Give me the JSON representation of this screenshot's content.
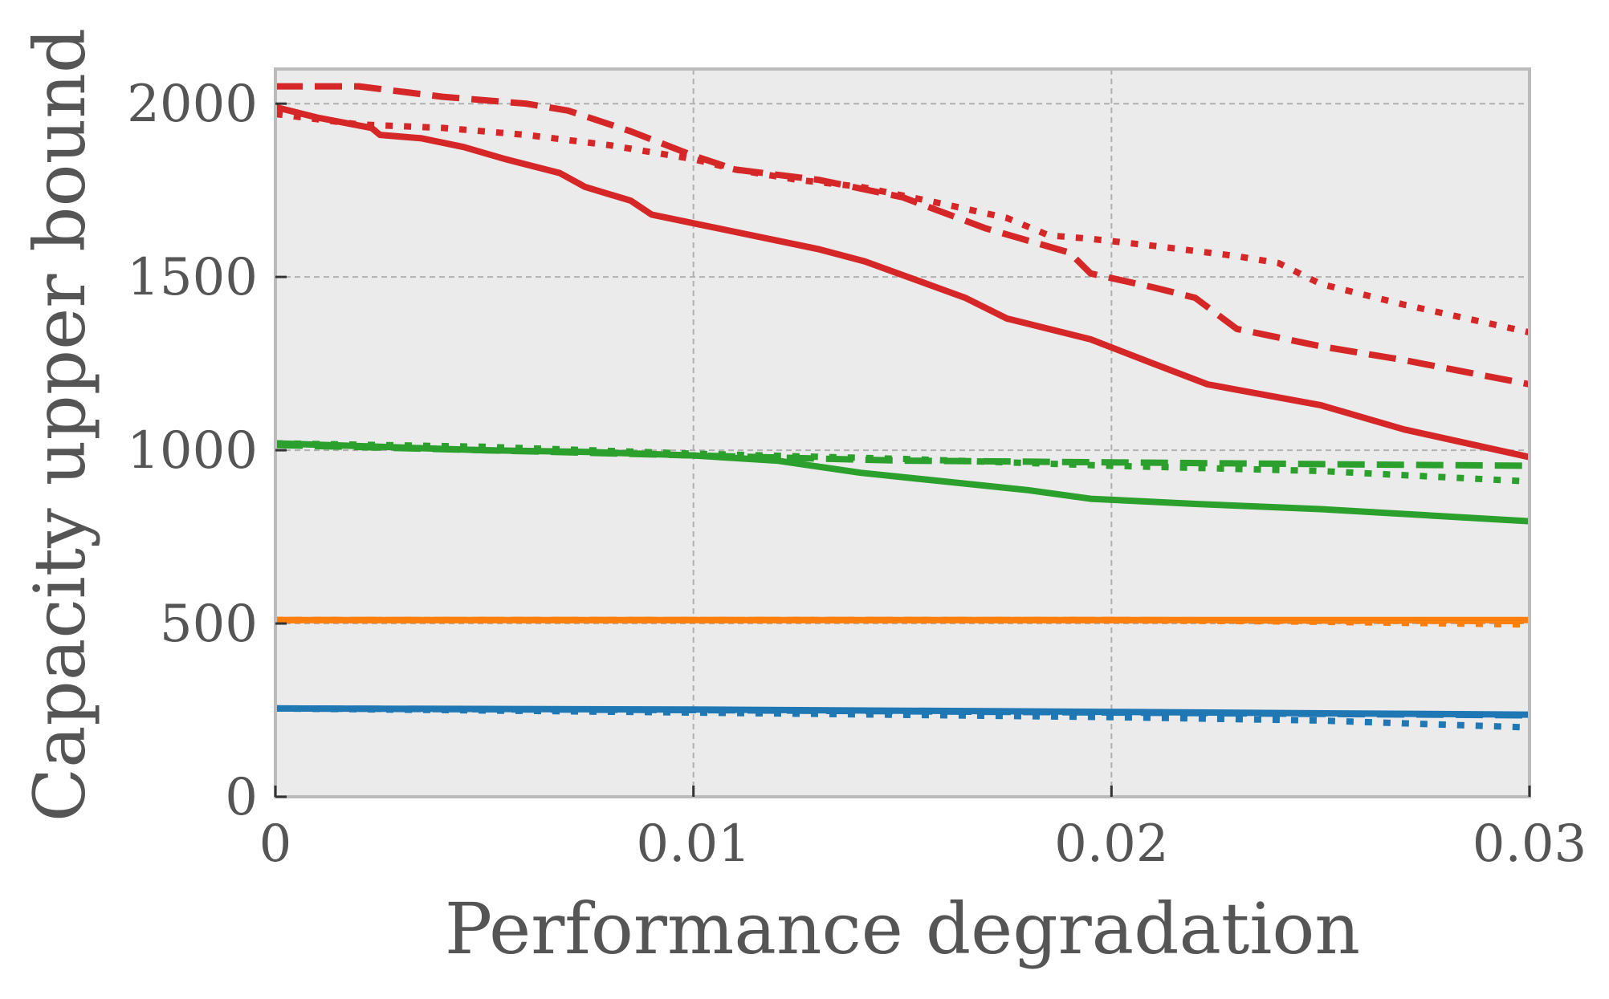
{
  "chart_data": {
    "type": "line",
    "title": "",
    "xlabel": "Performance degradation",
    "ylabel": "Capacity upper bound",
    "xlim": [
      0,
      0.03
    ],
    "ylim": [
      0,
      2100
    ],
    "grid": true,
    "x_ticks": [
      {
        "value": 0,
        "label": "0"
      },
      {
        "value": 0.01,
        "label": "0.01"
      },
      {
        "value": 0.02,
        "label": "0.02"
      },
      {
        "value": 0.03,
        "label": "0.03"
      }
    ],
    "y_ticks": [
      {
        "value": 0,
        "label": "0"
      },
      {
        "value": 500,
        "label": "500"
      },
      {
        "value": 1000,
        "label": "1000"
      },
      {
        "value": 1500,
        "label": "1500"
      },
      {
        "value": 2000,
        "label": "2000"
      }
    ],
    "colors": {
      "red": "#d62728",
      "green": "#2ca02c",
      "orange": "#ff7f0e",
      "blue": "#1f77b4",
      "plot_bg": "#ebebeb",
      "frame": "#bbbbbb",
      "grid": "#b0b0b0",
      "text": "#555555"
    },
    "series": [
      {
        "name": "red-solid",
        "color": "#d62728",
        "style": "solid",
        "x": [
          0,
          0.001,
          0.0023,
          0.0025,
          0.0035,
          0.0045,
          0.0055,
          0.0068,
          0.0074,
          0.0085,
          0.009,
          0.011,
          0.013,
          0.0141,
          0.0165,
          0.0175,
          0.0195,
          0.021,
          0.0223,
          0.025,
          0.027,
          0.03
        ],
        "y": [
          1990,
          1960,
          1930,
          1910,
          1900,
          1875,
          1840,
          1800,
          1760,
          1720,
          1680,
          1630,
          1580,
          1545,
          1440,
          1380,
          1320,
          1250,
          1190,
          1130,
          1060,
          980
        ]
      },
      {
        "name": "red-dashed",
        "color": "#d62728",
        "style": "dashed",
        "x": [
          0,
          0.002,
          0.004,
          0.006,
          0.007,
          0.0085,
          0.01,
          0.0105,
          0.011,
          0.013,
          0.015,
          0.017,
          0.019,
          0.0195,
          0.021,
          0.022,
          0.023,
          0.025,
          0.027,
          0.03
        ],
        "y": [
          2050,
          2050,
          2020,
          2000,
          1980,
          1920,
          1850,
          1830,
          1810,
          1780,
          1730,
          1640,
          1570,
          1510,
          1470,
          1440,
          1350,
          1300,
          1260,
          1190
        ]
      },
      {
        "name": "red-dotted",
        "color": "#d62728",
        "style": "dotted",
        "x": [
          0,
          0.002,
          0.004,
          0.006,
          0.008,
          0.01,
          0.011,
          0.0125,
          0.014,
          0.016,
          0.0175,
          0.0185,
          0.0195,
          0.021,
          0.023,
          0.024,
          0.025,
          0.027,
          0.03
        ],
        "y": [
          1970,
          1940,
          1930,
          1910,
          1880,
          1840,
          1810,
          1780,
          1760,
          1710,
          1670,
          1620,
          1610,
          1590,
          1560,
          1540,
          1480,
          1420,
          1340
        ]
      },
      {
        "name": "green-solid",
        "color": "#2ca02c",
        "style": "solid",
        "x": [
          0,
          0.0025,
          0.005,
          0.0075,
          0.01,
          0.012,
          0.014,
          0.016,
          0.018,
          0.0195,
          0.022,
          0.025,
          0.03
        ],
        "y": [
          1020,
          1010,
          1000,
          995,
          985,
          970,
          935,
          910,
          885,
          860,
          845,
          830,
          795
        ]
      },
      {
        "name": "green-dashed",
        "color": "#2ca02c",
        "style": "dashed",
        "x": [
          0,
          0.005,
          0.01,
          0.015,
          0.02,
          0.025,
          0.03
        ],
        "y": [
          1015,
          1000,
          985,
          970,
          965,
          960,
          955
        ]
      },
      {
        "name": "green-dotted",
        "color": "#2ca02c",
        "style": "dotted",
        "x": [
          0,
          0.005,
          0.01,
          0.015,
          0.02,
          0.025,
          0.03
        ],
        "y": [
          1020,
          1010,
          990,
          975,
          955,
          940,
          910
        ]
      },
      {
        "name": "orange-solid",
        "color": "#ff7f0e",
        "style": "solid",
        "x": [
          0,
          0.01,
          0.02,
          0.03
        ],
        "y": [
          510,
          510,
          510,
          510
        ]
      },
      {
        "name": "orange-dashed",
        "color": "#ff7f0e",
        "style": "dashed",
        "x": [
          0,
          0.01,
          0.02,
          0.03
        ],
        "y": [
          510,
          510,
          510,
          507
        ]
      },
      {
        "name": "orange-dotted",
        "color": "#ff7f0e",
        "style": "dotted",
        "x": [
          0,
          0.01,
          0.02,
          0.025,
          0.03
        ],
        "y": [
          510,
          510,
          510,
          505,
          497
        ]
      },
      {
        "name": "blue-solid",
        "color": "#1f77b4",
        "style": "solid",
        "x": [
          0,
          0.01,
          0.02,
          0.03
        ],
        "y": [
          255,
          252,
          245,
          237
        ]
      },
      {
        "name": "blue-dashed",
        "color": "#1f77b4",
        "style": "dashed",
        "x": [
          0,
          0.01,
          0.02,
          0.03
        ],
        "y": [
          255,
          250,
          243,
          235
        ]
      },
      {
        "name": "blue-dotted",
        "color": "#1f77b4",
        "style": "dotted",
        "x": [
          0,
          0.01,
          0.02,
          0.025,
          0.03
        ],
        "y": [
          255,
          243,
          230,
          220,
          200
        ]
      }
    ]
  }
}
